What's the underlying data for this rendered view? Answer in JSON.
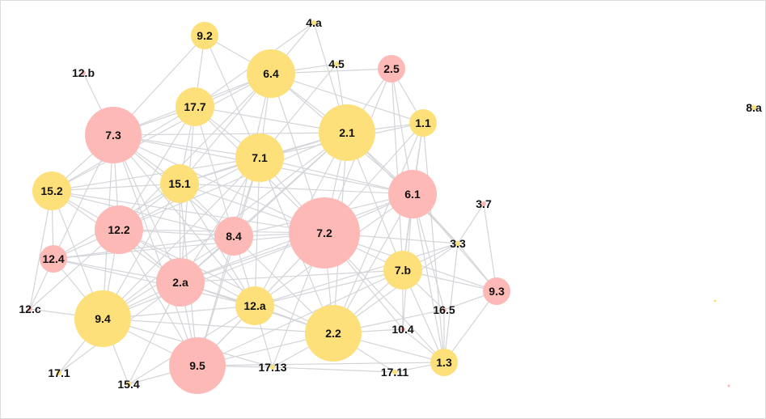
{
  "colors": {
    "yellow": "#fde07a",
    "pink": "#fdb9b6",
    "edge": "#d3d5d9",
    "label": "#111111"
  },
  "nodes": [
    {
      "id": "9.2",
      "color": "yellow",
      "size": "small"
    },
    {
      "id": "4.a",
      "color": "yellow",
      "size": "tiny"
    },
    {
      "id": "6.4",
      "color": "yellow",
      "size": "large"
    },
    {
      "id": "4.5",
      "color": "yellow",
      "size": "tiny"
    },
    {
      "id": "2.5",
      "color": "pink",
      "size": "small"
    },
    {
      "id": "12.b",
      "color": "pink",
      "size": "tiny"
    },
    {
      "id": "17.7",
      "color": "yellow",
      "size": "medium"
    },
    {
      "id": "7.3",
      "color": "pink",
      "size": "xlarge"
    },
    {
      "id": "2.1",
      "color": "yellow",
      "size": "xlarge"
    },
    {
      "id": "1.1",
      "color": "yellow",
      "size": "small"
    },
    {
      "id": "7.1",
      "color": "yellow",
      "size": "large"
    },
    {
      "id": "8.a",
      "color": "yellow",
      "size": "tiny"
    },
    {
      "id": "15.2",
      "color": "yellow",
      "size": "medium"
    },
    {
      "id": "15.1",
      "color": "yellow",
      "size": "medium"
    },
    {
      "id": "6.1",
      "color": "pink",
      "size": "large"
    },
    {
      "id": "3.7",
      "color": "pink",
      "size": "tiny"
    },
    {
      "id": "12.2",
      "color": "pink",
      "size": "large"
    },
    {
      "id": "8.4",
      "color": "pink",
      "size": "medium"
    },
    {
      "id": "7.2",
      "color": "pink",
      "size": "huge"
    },
    {
      "id": "3.3",
      "color": "yellow",
      "size": "tiny"
    },
    {
      "id": "12.4",
      "color": "pink",
      "size": "small"
    },
    {
      "id": "7.b",
      "color": "yellow",
      "size": "medium"
    },
    {
      "id": "2.a",
      "color": "pink",
      "size": "large"
    },
    {
      "id": "9.3",
      "color": "pink",
      "size": "small"
    },
    {
      "id": "12.a",
      "color": "yellow",
      "size": "medium"
    },
    {
      "id": "12.c",
      "color": "pink",
      "size": "tiny"
    },
    {
      "id": "9.4",
      "color": "yellow",
      "size": "xlarge"
    },
    {
      "id": "16.5",
      "color": "pink",
      "size": "tiny"
    },
    {
      "id": "10.4",
      "color": "pink",
      "size": "tiny"
    },
    {
      "id": "2.2",
      "color": "yellow",
      "size": "xlarge"
    },
    {
      "id": "9.5",
      "color": "pink",
      "size": "xlarge"
    },
    {
      "id": "1.3",
      "color": "yellow",
      "size": "small"
    },
    {
      "id": "17.1",
      "color": "yellow",
      "size": "tiny"
    },
    {
      "id": "15.4",
      "color": "yellow",
      "size": "tiny"
    },
    {
      "id": "17.13",
      "color": "yellow",
      "size": "tiny"
    },
    {
      "id": "17.11",
      "color": "yellow",
      "size": "tiny"
    }
  ],
  "edges": [
    [
      "9.2",
      "6.4"
    ],
    [
      "9.2",
      "17.7"
    ],
    [
      "9.2",
      "7.3"
    ],
    [
      "9.2",
      "7.1"
    ],
    [
      "4.a",
      "6.4"
    ],
    [
      "4.a",
      "17.7"
    ],
    [
      "4.a",
      "2.1"
    ],
    [
      "4.5",
      "6.4"
    ],
    [
      "4.5",
      "2.1"
    ],
    [
      "4.5",
      "7.1"
    ],
    [
      "2.5",
      "6.4"
    ],
    [
      "2.5",
      "2.1"
    ],
    [
      "2.5",
      "1.1"
    ],
    [
      "2.5",
      "6.1"
    ],
    [
      "2.5",
      "7.2"
    ],
    [
      "2.5",
      "7.b"
    ],
    [
      "12.b",
      "7.3"
    ],
    [
      "6.4",
      "17.7"
    ],
    [
      "6.4",
      "7.3"
    ],
    [
      "6.4",
      "2.1"
    ],
    [
      "6.4",
      "7.1"
    ],
    [
      "6.4",
      "15.1"
    ],
    [
      "6.4",
      "7.2"
    ],
    [
      "6.4",
      "12.2"
    ],
    [
      "6.4",
      "8.4"
    ],
    [
      "6.4",
      "6.1"
    ],
    [
      "6.4",
      "1.1"
    ],
    [
      "6.4",
      "15.2"
    ],
    [
      "17.7",
      "7.3"
    ],
    [
      "17.7",
      "7.1"
    ],
    [
      "17.7",
      "15.1"
    ],
    [
      "17.7",
      "12.2"
    ],
    [
      "17.7",
      "2.1"
    ],
    [
      "17.7",
      "7.2"
    ],
    [
      "17.7",
      "15.2"
    ],
    [
      "17.7",
      "8.4"
    ],
    [
      "17.7",
      "2.a"
    ],
    [
      "7.3",
      "15.2"
    ],
    [
      "7.3",
      "15.1"
    ],
    [
      "7.3",
      "12.2"
    ],
    [
      "7.3",
      "7.1"
    ],
    [
      "7.3",
      "8.4"
    ],
    [
      "7.3",
      "7.2"
    ],
    [
      "7.3",
      "2.a"
    ],
    [
      "7.3",
      "12.4"
    ],
    [
      "7.3",
      "9.4"
    ],
    [
      "7.3",
      "2.1"
    ],
    [
      "7.3",
      "12.a"
    ],
    [
      "7.3",
      "6.1"
    ],
    [
      "7.3",
      "9.5"
    ],
    [
      "2.1",
      "1.1"
    ],
    [
      "2.1",
      "7.1"
    ],
    [
      "2.1",
      "6.1"
    ],
    [
      "2.1",
      "7.2"
    ],
    [
      "2.1",
      "15.1"
    ],
    [
      "2.1",
      "8.4"
    ],
    [
      "2.1",
      "12.2"
    ],
    [
      "2.1",
      "2.a"
    ],
    [
      "2.1",
      "7.b"
    ],
    [
      "2.1",
      "3.3"
    ],
    [
      "2.1",
      "9.4"
    ],
    [
      "2.1",
      "2.2"
    ],
    [
      "2.1",
      "12.a"
    ],
    [
      "1.1",
      "6.1"
    ],
    [
      "1.1",
      "7.2"
    ],
    [
      "1.1",
      "7.b"
    ],
    [
      "1.1",
      "7.1"
    ],
    [
      "1.1",
      "2.2"
    ],
    [
      "1.1",
      "1.3"
    ],
    [
      "7.1",
      "15.1"
    ],
    [
      "7.1",
      "8.4"
    ],
    [
      "7.1",
      "7.2"
    ],
    [
      "7.1",
      "12.2"
    ],
    [
      "7.1",
      "2.a"
    ],
    [
      "7.1",
      "6.1"
    ],
    [
      "7.1",
      "15.2"
    ],
    [
      "7.1",
      "9.4"
    ],
    [
      "7.1",
      "12.a"
    ],
    [
      "7.1",
      "2.2"
    ],
    [
      "7.1",
      "9.5"
    ],
    [
      "15.2",
      "15.1"
    ],
    [
      "15.2",
      "12.2"
    ],
    [
      "15.2",
      "12.4"
    ],
    [
      "15.2",
      "8.4"
    ],
    [
      "15.2",
      "2.a"
    ],
    [
      "15.2",
      "9.4"
    ],
    [
      "15.2",
      "7.2"
    ],
    [
      "15.2",
      "12.c"
    ],
    [
      "15.1",
      "12.2"
    ],
    [
      "15.1",
      "8.4"
    ],
    [
      "15.1",
      "7.2"
    ],
    [
      "15.1",
      "2.a"
    ],
    [
      "15.1",
      "9.4"
    ],
    [
      "15.1",
      "12.a"
    ],
    [
      "15.1",
      "9.5"
    ],
    [
      "15.1",
      "12.4"
    ],
    [
      "15.1",
      "6.1"
    ],
    [
      "6.1",
      "7.2"
    ],
    [
      "6.1",
      "3.3"
    ],
    [
      "6.1",
      "7.b"
    ],
    [
      "6.1",
      "9.3"
    ],
    [
      "6.1",
      "2.2"
    ],
    [
      "6.1",
      "12.a"
    ],
    [
      "6.1",
      "1.3"
    ],
    [
      "6.1",
      "8.4"
    ],
    [
      "6.1",
      "16.5"
    ],
    [
      "6.1",
      "10.4"
    ],
    [
      "6.1",
      "2.a"
    ],
    [
      "3.7",
      "9.3"
    ],
    [
      "3.7",
      "3.3"
    ],
    [
      "12.2",
      "8.4"
    ],
    [
      "12.2",
      "7.2"
    ],
    [
      "12.2",
      "2.a"
    ],
    [
      "12.2",
      "12.4"
    ],
    [
      "12.2",
      "9.4"
    ],
    [
      "12.2",
      "12.a"
    ],
    [
      "12.2",
      "9.5"
    ],
    [
      "12.2",
      "2.2"
    ],
    [
      "12.2",
      "12.c"
    ],
    [
      "8.4",
      "7.2"
    ],
    [
      "8.4",
      "2.a"
    ],
    [
      "8.4",
      "12.a"
    ],
    [
      "8.4",
      "9.4"
    ],
    [
      "8.4",
      "9.5"
    ],
    [
      "8.4",
      "2.2"
    ],
    [
      "8.4",
      "12.4"
    ],
    [
      "7.2",
      "3.3"
    ],
    [
      "7.2",
      "7.b"
    ],
    [
      "7.2",
      "2.a"
    ],
    [
      "7.2",
      "12.a"
    ],
    [
      "7.2",
      "2.2"
    ],
    [
      "7.2",
      "9.4"
    ],
    [
      "7.2",
      "9.5"
    ],
    [
      "7.2",
      "12.4"
    ],
    [
      "7.2",
      "1.3"
    ],
    [
      "7.2",
      "10.4"
    ],
    [
      "7.2",
      "9.3"
    ],
    [
      "7.2",
      "17.13"
    ],
    [
      "3.3",
      "7.b"
    ],
    [
      "3.3",
      "2.2"
    ],
    [
      "3.3",
      "1.3"
    ],
    [
      "3.3",
      "9.3"
    ],
    [
      "3.3",
      "12.a"
    ],
    [
      "12.4",
      "2.a"
    ],
    [
      "12.4",
      "9.4"
    ],
    [
      "12.4",
      "12.c"
    ],
    [
      "12.4",
      "12.a"
    ],
    [
      "7.b",
      "2.2"
    ],
    [
      "7.b",
      "12.a"
    ],
    [
      "7.b",
      "1.3"
    ],
    [
      "7.b",
      "10.4"
    ],
    [
      "7.b",
      "9.3"
    ],
    [
      "7.b",
      "16.5"
    ],
    [
      "7.b",
      "2.a"
    ],
    [
      "7.b",
      "9.5"
    ],
    [
      "2.a",
      "12.a"
    ],
    [
      "2.a",
      "9.4"
    ],
    [
      "2.a",
      "9.5"
    ],
    [
      "2.a",
      "2.2"
    ],
    [
      "2.a",
      "15.4"
    ],
    [
      "2.a",
      "17.1"
    ],
    [
      "9.3",
      "1.3"
    ],
    [
      "9.3",
      "16.5"
    ],
    [
      "12.a",
      "2.2"
    ],
    [
      "12.a",
      "9.4"
    ],
    [
      "12.a",
      "9.5"
    ],
    [
      "12.a",
      "17.13"
    ],
    [
      "12.a",
      "15.4"
    ],
    [
      "12.c",
      "9.4"
    ],
    [
      "9.4",
      "9.5"
    ],
    [
      "9.4",
      "2.2"
    ],
    [
      "9.4",
      "17.1"
    ],
    [
      "9.4",
      "15.4"
    ],
    [
      "9.4",
      "17.13"
    ],
    [
      "16.5",
      "1.3"
    ],
    [
      "16.5",
      "2.2"
    ],
    [
      "10.4",
      "2.2"
    ],
    [
      "10.4",
      "1.3"
    ],
    [
      "2.2",
      "1.3"
    ],
    [
      "2.2",
      "9.5"
    ],
    [
      "2.2",
      "17.13"
    ],
    [
      "2.2",
      "17.11"
    ],
    [
      "9.5",
      "17.13"
    ],
    [
      "9.5",
      "15.4"
    ],
    [
      "9.5",
      "1.3"
    ],
    [
      "1.3",
      "17.11"
    ],
    [
      "17.13",
      "17.11"
    ]
  ]
}
